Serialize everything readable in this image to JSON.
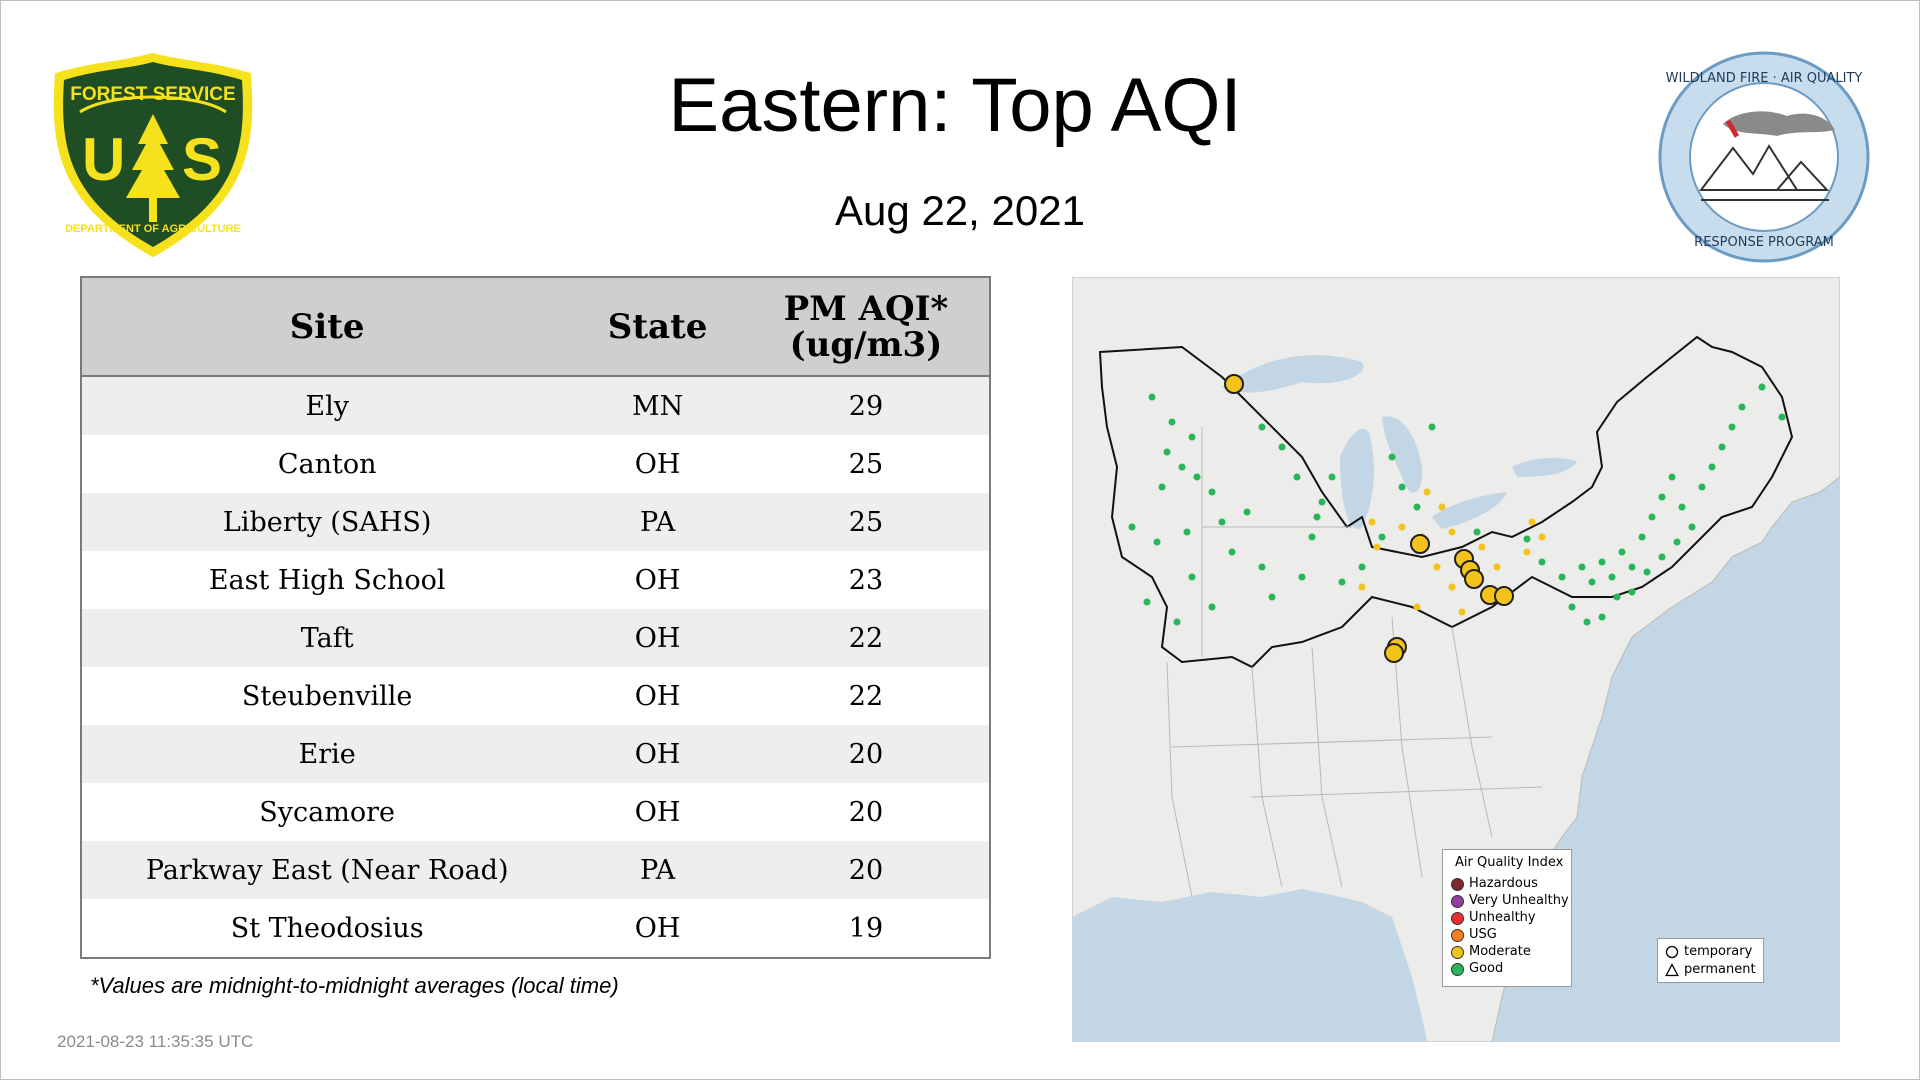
{
  "header": {
    "title": "Eastern: Top AQI",
    "date": "Aug 22, 2021"
  },
  "logos": {
    "forest_service": {
      "top_text": "FOREST SERVICE",
      "letters": "US",
      "bottom_text": "DEPARTMENT OF AGRICULTURE"
    },
    "wildland": {
      "top_text": "WILDLAND FIRE · AIR QUALITY",
      "bottom_text": "RESPONSE PROGRAM"
    }
  },
  "table": {
    "columns": [
      "Site",
      "State",
      "PM AQI*",
      "(ug/m3)"
    ],
    "rows": [
      {
        "site": "Ely",
        "state": "MN",
        "value": "29"
      },
      {
        "site": "Canton",
        "state": "OH",
        "value": "25"
      },
      {
        "site": "Liberty (SAHS)",
        "state": "PA",
        "value": "25"
      },
      {
        "site": "East High School",
        "state": "OH",
        "value": "23"
      },
      {
        "site": "Taft",
        "state": "OH",
        "value": "22"
      },
      {
        "site": "Steubenville",
        "state": "OH",
        "value": "22"
      },
      {
        "site": "Erie",
        "state": "OH",
        "value": "20"
      },
      {
        "site": "Sycamore",
        "state": "OH",
        "value": "20"
      },
      {
        "site": "Parkway East (Near Road)",
        "state": "PA",
        "value": "20"
      },
      {
        "site": "St Theodosius",
        "state": "OH",
        "value": "19"
      }
    ]
  },
  "footnote": "*Values are midnight-to-midnight averages (local time)",
  "timestamp": "2021-08-23 11:35:35 UTC",
  "legend": {
    "title": "Air Quality Index",
    "items": [
      {
        "label": "Hazardous",
        "color": "#7e2a2a"
      },
      {
        "label": "Very Unhealthy",
        "color": "#8f3f97"
      },
      {
        "label": "Unhealthy",
        "color": "#e8312e"
      },
      {
        "label": "USG",
        "color": "#f57f20"
      },
      {
        "label": "Moderate",
        "color": "#f3c21b"
      },
      {
        "label": "Good",
        "color": "#27b65a"
      }
    ],
    "shapes": [
      {
        "label": "temporary",
        "icon": "circle-icon"
      },
      {
        "label": "permanent",
        "icon": "triangle-icon"
      }
    ]
  },
  "colors": {
    "forest_green": "#1f4d24",
    "forest_yellow": "#f6e11d",
    "water": "#c3d6e6",
    "land": "#ececea",
    "good": "#27b65a",
    "moderate": "#f3c21b"
  }
}
